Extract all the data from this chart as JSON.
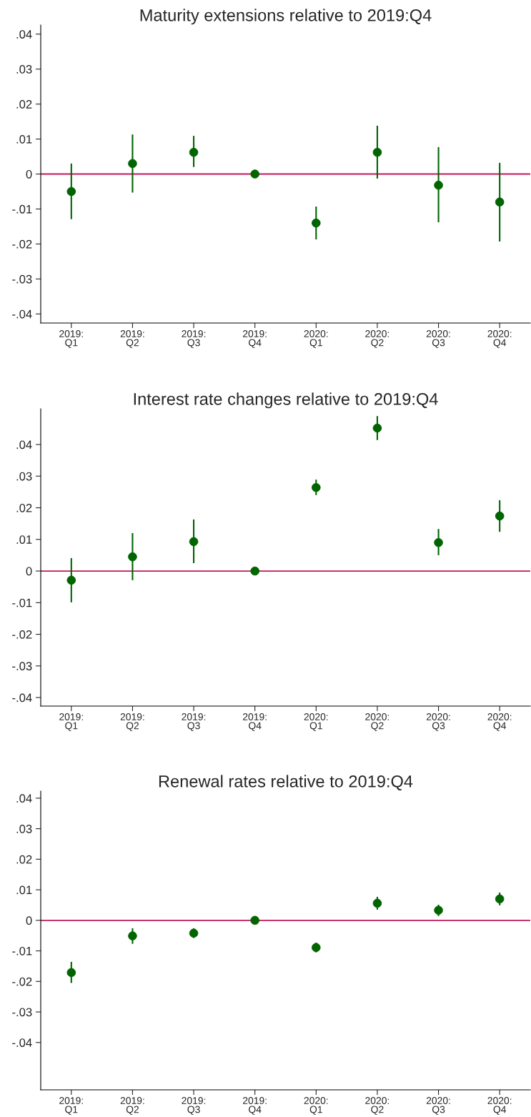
{
  "chart_data": [
    {
      "type": "scatter",
      "title": "Maturity extensions relative to 2019:Q4",
      "categories": [
        "2019:\nQ1",
        "2019:\nQ2",
        "2019:\nQ3",
        "2019:\nQ4",
        "2020:\nQ1",
        "2020:\nQ2",
        "2020:\nQ3",
        "2020:\nQ4"
      ],
      "series": [
        {
          "color": "#006400",
          "values": [
            -0.005,
            0.003,
            0.0062,
            0,
            -0.014,
            0.0062,
            -0.0032,
            -0.008
          ],
          "errors": [
            [
              -0.0129,
              0.003
            ],
            [
              -0.0053,
              0.0113
            ],
            [
              0.002,
              0.0109
            ],
            null,
            [
              -0.0187,
              -0.0093
            ],
            [
              -0.0013,
              0.0138
            ],
            [
              -0.0138,
              0.0077
            ],
            [
              -0.0193,
              0.0032
            ]
          ]
        }
      ],
      "ylim": [
        -0.0426,
        0.0426
      ],
      "yticks": [
        {
          "value": -0.04,
          "label": "-.04"
        },
        {
          "value": -0.03,
          "label": "-.03"
        },
        {
          "value": -0.02,
          "label": "-.02"
        },
        {
          "value": -0.01,
          "label": "-.01"
        },
        0,
        {
          "value": 0.01,
          "label": ".01"
        },
        {
          "value": 0.02,
          "label": ".02"
        },
        {
          "value": 0.03,
          "label": ".03"
        },
        {
          "value": 0.04,
          "label": ".04"
        }
      ],
      "ref_lines": [
        {
          "axis": "y",
          "value": 0,
          "color": "#c0185a"
        }
      ],
      "marker": "circle",
      "grid": false,
      "legend": false
    },
    {
      "type": "scatter",
      "title": "Interest rate changes relative to 2019:Q4",
      "categories": [
        "2019:\nQ1",
        "2019:\nQ2",
        "2019:\nQ3",
        "2019:\nQ4",
        "2020:\nQ1",
        "2020:\nQ2",
        "2020:\nQ3",
        "2020:\nQ4"
      ],
      "series": [
        {
          "color": "#006400",
          "values": [
            -0.0029,
            0.0045,
            0.0093,
            0,
            0.0264,
            0.0452,
            0.009,
            0.0174
          ],
          "errors": [
            [
              -0.0099,
              0.0041
            ],
            [
              -0.0029,
              0.012
            ],
            [
              0.0025,
              0.0163
            ],
            null,
            [
              0.024,
              0.0289
            ],
            [
              0.0414,
              0.049
            ],
            [
              0.005,
              0.0133
            ],
            [
              0.0124,
              0.0224
            ]
          ]
        }
      ],
      "ylim": [
        -0.0427,
        0.0513
      ],
      "yticks": [
        {
          "value": -0.04,
          "label": "-.04"
        },
        {
          "value": -0.03,
          "label": "-.03"
        },
        {
          "value": -0.02,
          "label": "-.02"
        },
        {
          "value": -0.01,
          "label": "-.01"
        },
        0,
        {
          "value": 0.01,
          "label": ".01"
        },
        {
          "value": 0.02,
          "label": ".02"
        },
        {
          "value": 0.03,
          "label": ".03"
        },
        {
          "value": 0.04,
          "label": ".04"
        }
      ],
      "ref_lines": [
        {
          "axis": "y",
          "value": 0,
          "color": "#c0185a"
        }
      ],
      "marker": "circle",
      "grid": false,
      "legend": false
    },
    {
      "type": "scatter",
      "title": "Renewal rates relative to 2019:Q4",
      "categories": [
        "2019:\nQ1",
        "2019:\nQ2",
        "2019:\nQ3",
        "2019:\nQ4",
        "2020:\nQ1",
        "2020:\nQ2",
        "2020:\nQ3",
        "2020:\nQ4"
      ],
      "series": [
        {
          "color": "#006400",
          "values": [
            -0.0171,
            -0.0051,
            -0.0042,
            0,
            -0.0089,
            0.0056,
            0.0033,
            0.007
          ],
          "errors": [
            [
              -0.0205,
              -0.0136
            ],
            [
              -0.0077,
              -0.0026
            ],
            [
              -0.0058,
              -0.0026
            ],
            null,
            [
              -0.0105,
              -0.0073
            ],
            [
              0.0035,
              0.0077
            ],
            [
              0.0014,
              0.0051
            ],
            [
              0.0049,
              0.0091
            ]
          ]
        }
      ],
      "ylim": [
        -0.0555,
        0.0423
      ],
      "yticks": [
        {
          "value": -0.04,
          "label": "-.04"
        },
        {
          "value": -0.03,
          "label": "-.03"
        },
        {
          "value": -0.02,
          "label": "-.02"
        },
        {
          "value": -0.01,
          "label": "-.01"
        },
        0,
        {
          "value": 0.01,
          "label": ".01"
        },
        {
          "value": 0.02,
          "label": ".02"
        },
        {
          "value": 0.03,
          "label": ".03"
        },
        {
          "value": 0.04,
          "label": ".04"
        }
      ],
      "ref_lines": [
        {
          "axis": "y",
          "value": 0,
          "color": "#c0185a"
        }
      ],
      "marker": "circle",
      "grid": false,
      "legend": false
    }
  ]
}
